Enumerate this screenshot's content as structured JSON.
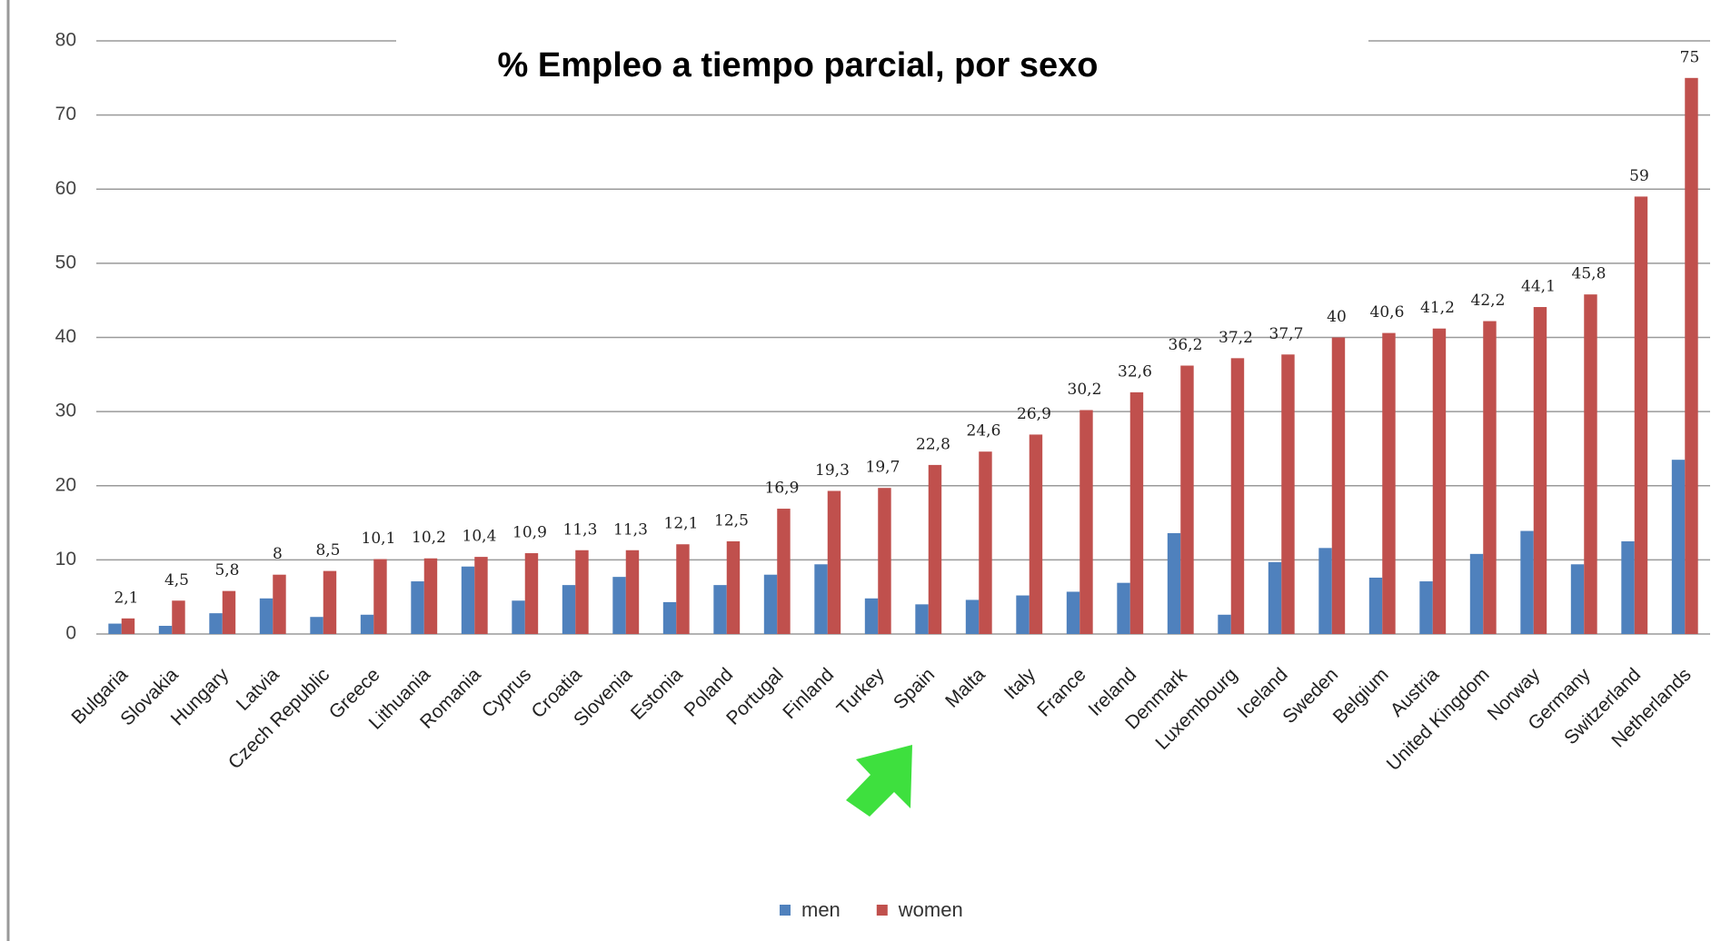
{
  "chart_data": {
    "type": "bar",
    "title": "% Empleo a tiempo parcial, por sexo",
    "categories": [
      "Bulgaria",
      "Slovakia",
      "Hungary",
      "Latvia",
      "Czech Republic",
      "Greece",
      "Lithuania",
      "Romania",
      "Cyprus",
      "Croatia",
      "Slovenia",
      "Estonia",
      "Poland",
      "Portugal",
      "Finland",
      "Turkey",
      "Spain",
      "Malta",
      "Italy",
      "France",
      "Ireland",
      "Denmark",
      "Luxembourg",
      "Iceland",
      "Sweden",
      "Belgium",
      "Austria",
      "United Kingdom",
      "Norway",
      "Germany",
      "Switzerland",
      "Netherlands"
    ],
    "series": [
      {
        "name": "men",
        "color": "#4f81bd",
        "values": [
          1.4,
          1.1,
          2.8,
          4.8,
          2.3,
          2.6,
          7.1,
          9.1,
          4.5,
          6.6,
          7.7,
          4.3,
          6.6,
          8,
          9.4,
          4.8,
          4,
          4.6,
          5.2,
          5.7,
          6.9,
          13.6,
          2.6,
          9.7,
          11.6,
          7.6,
          7.1,
          10.8,
          13.9,
          9.4,
          12.5,
          23.5
        ]
      },
      {
        "name": "women",
        "color": "#c0504d",
        "values": [
          2.1,
          4.5,
          5.8,
          8,
          8.5,
          10.1,
          10.2,
          10.4,
          10.9,
          11.3,
          11.3,
          12.1,
          12.5,
          16.9,
          19.3,
          19.7,
          22.8,
          24.6,
          26.9,
          30.2,
          32.6,
          36.2,
          37.2,
          37.7,
          40,
          40.6,
          41.2,
          42.2,
          44.1,
          45.8,
          59,
          75
        ],
        "value_labels": [
          "2,1",
          "4,5",
          "5,8",
          "8",
          "8,5",
          "10,1",
          "10,2",
          "10,4",
          "10,9",
          "11,3",
          "11,3",
          "12,1",
          "12,5",
          "16,9",
          "19,3",
          "19,7",
          "22,8",
          "24,6",
          "26,9",
          "30,2",
          "32,6",
          "36,2",
          "37,2",
          "37,7",
          "40",
          "40,6",
          "41,2",
          "42,2",
          "44,1",
          "45,8",
          "59",
          "75"
        ]
      }
    ],
    "ylim": [
      0,
      80
    ],
    "yticks": [
      0,
      10,
      20,
      30,
      40,
      50,
      60,
      70,
      80
    ],
    "grid": true,
    "legend": "bottom"
  }
}
